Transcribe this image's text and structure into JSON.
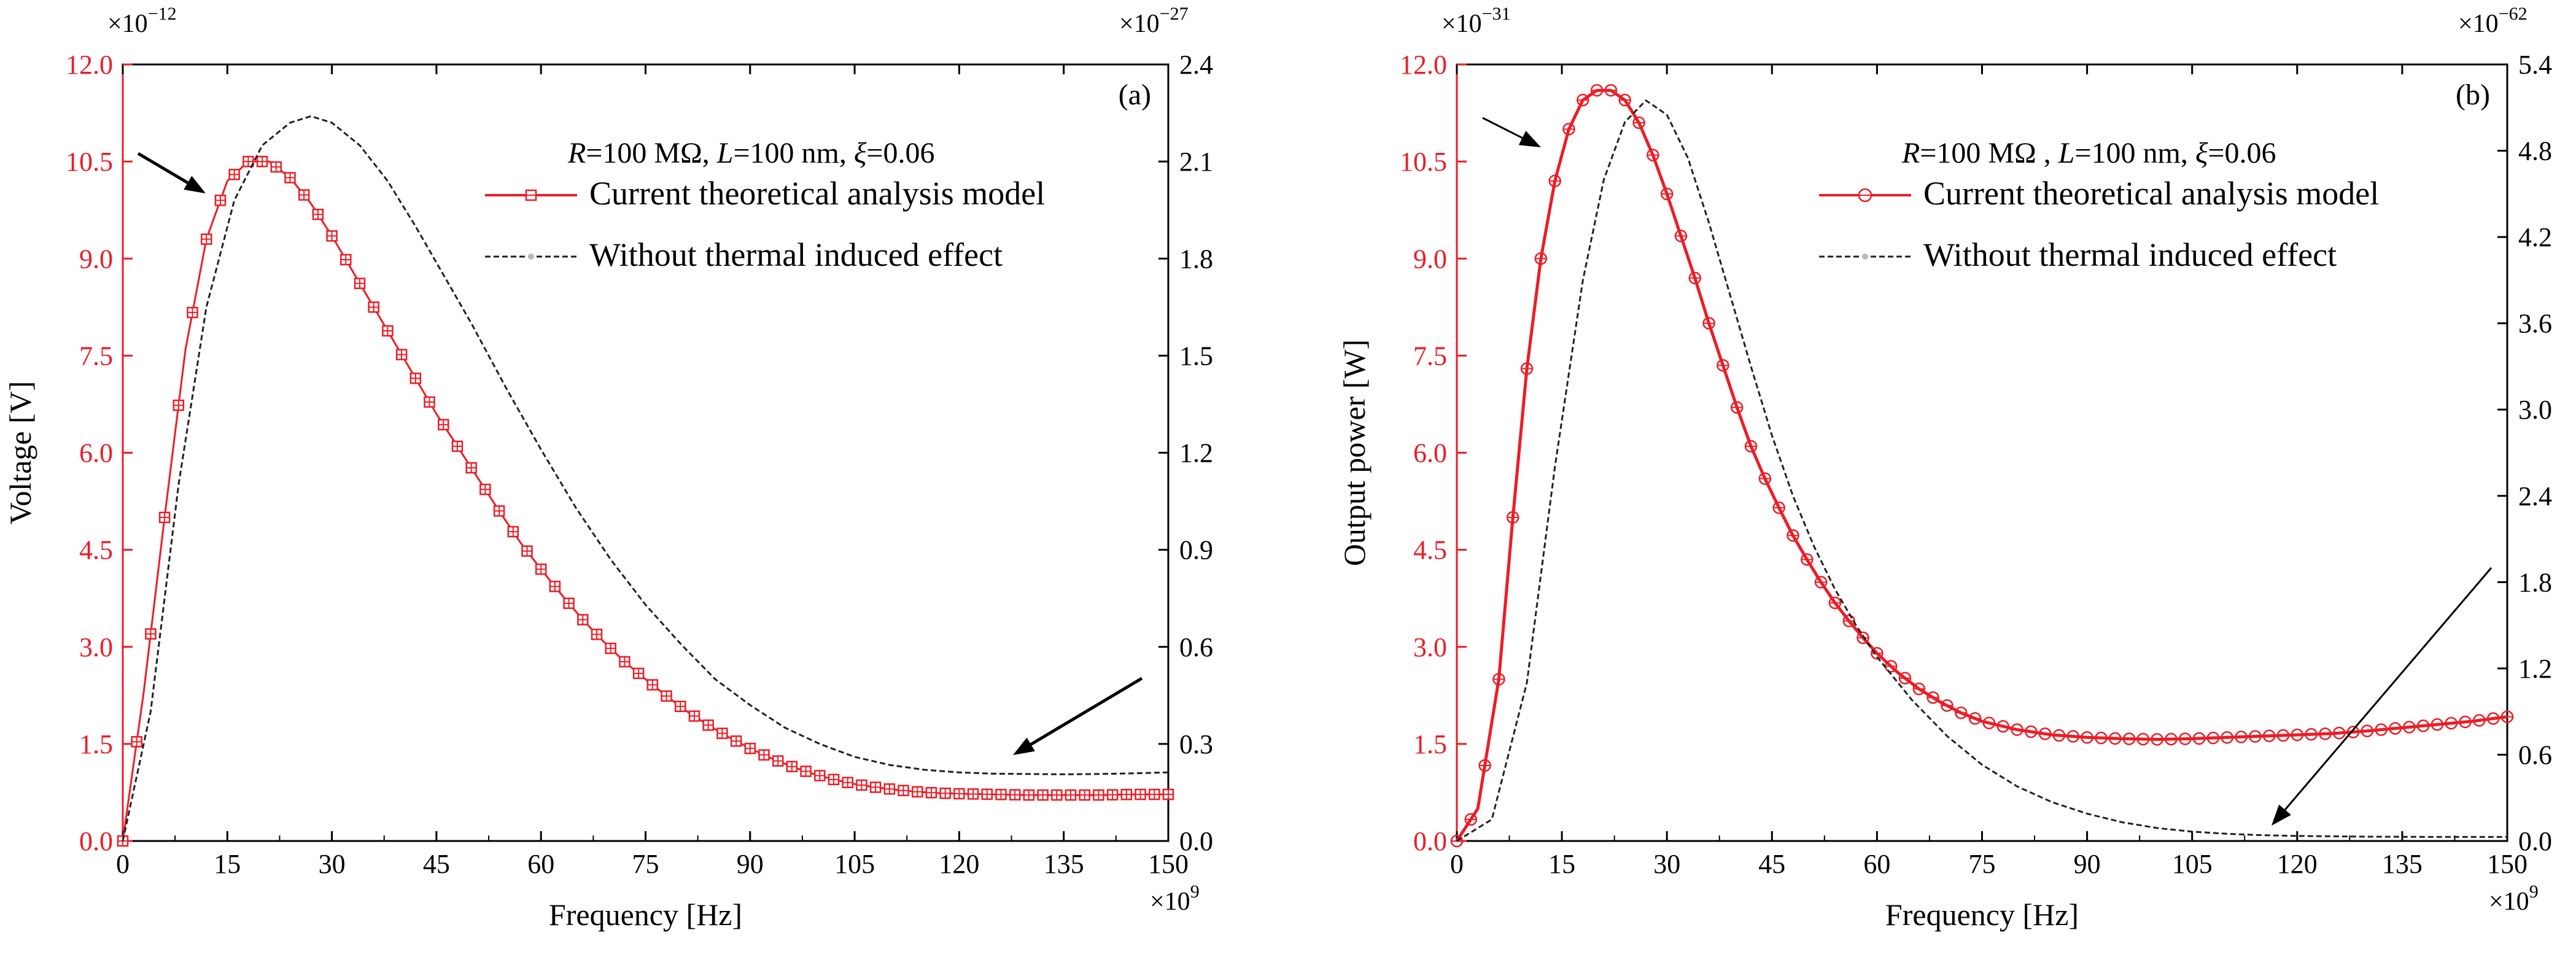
{
  "colors": {
    "primary": "#ee1c25",
    "secondary": "#222222",
    "axis": "#000000",
    "marker_fill": "none"
  },
  "chart_data": [
    {
      "type": "line",
      "panel_label": "(a)",
      "xlabel": "Frequency [Hz]",
      "x_multiplier": "×10",
      "x_multiplier_exp": "9",
      "xlim": [
        0,
        150
      ],
      "xticks": [
        "0",
        "15",
        "30",
        "45",
        "60",
        "75",
        "90",
        "105",
        "120",
        "135",
        "150"
      ],
      "ylabel": "Voltage [V]",
      "y_multiplier": "×10",
      "y_multiplier_exp": "−12",
      "ylim": [
        0,
        12
      ],
      "yticks": [
        "0.0",
        "1.5",
        "3.0",
        "4.5",
        "6.0",
        "7.5",
        "9.0",
        "10.5",
        "12.0"
      ],
      "y2_multiplier": "×10",
      "y2_multiplier_exp": "−27",
      "y2lim": [
        0,
        2.4
      ],
      "y2ticks": [
        "0.0",
        "0.3",
        "0.6",
        "0.9",
        "1.2",
        "1.5",
        "1.8",
        "2.1",
        "2.4"
      ],
      "params": {
        "r_sym": "R",
        "r_text": "=100 MΩ,",
        "l_sym": "L",
        "l_text": "=100 nm,",
        "xi_sym": "ξ",
        "xi_text": "=0.06"
      },
      "series": [
        {
          "name": "Current theoretical analysis model",
          "axis": "left",
          "marker": "square",
          "points": [
            [
              0,
              0
            ],
            [
              3,
              2.3
            ],
            [
              6,
              5.0
            ],
            [
              9,
              7.6
            ],
            [
              12,
              9.3
            ],
            [
              15,
              10.2
            ],
            [
              18,
              10.5
            ],
            [
              21,
              10.5
            ],
            [
              24,
              10.25
            ],
            [
              27,
              9.85
            ],
            [
              30,
              9.35
            ],
            [
              33,
              8.8
            ],
            [
              36,
              8.25
            ],
            [
              39,
              7.7
            ],
            [
              42,
              7.15
            ],
            [
              45,
              6.6
            ],
            [
              48,
              6.1
            ],
            [
              51,
              5.6
            ],
            [
              54,
              5.1
            ],
            [
              57,
              4.62
            ],
            [
              60,
              4.2
            ],
            [
              63,
              3.8
            ],
            [
              66,
              3.42
            ],
            [
              69,
              3.08
            ],
            [
              72,
              2.77
            ],
            [
              75,
              2.5
            ],
            [
              78,
              2.24
            ],
            [
              81,
              2.0
            ],
            [
              84,
              1.79
            ],
            [
              87,
              1.6
            ],
            [
              90,
              1.43
            ],
            [
              93,
              1.28
            ],
            [
              96,
              1.15
            ],
            [
              99,
              1.04
            ],
            [
              102,
              0.95
            ],
            [
              105,
              0.88
            ],
            [
              108,
              0.83
            ],
            [
              111,
              0.79
            ],
            [
              114,
              0.76
            ],
            [
              117,
              0.74
            ],
            [
              120,
              0.73
            ],
            [
              125,
              0.72
            ],
            [
              130,
              0.71
            ],
            [
              135,
              0.71
            ],
            [
              140,
              0.71
            ],
            [
              145,
              0.72
            ],
            [
              150,
              0.72
            ]
          ]
        },
        {
          "name": "Without thermal induced effect",
          "axis": "right",
          "marker": "none",
          "points": [
            [
              0,
              0
            ],
            [
              4,
              0.4
            ],
            [
              8,
              1.1
            ],
            [
              12,
              1.65
            ],
            [
              16,
              1.98
            ],
            [
              20,
              2.15
            ],
            [
              24,
              2.22
            ],
            [
              27,
              2.24
            ],
            [
              30,
              2.22
            ],
            [
              34,
              2.15
            ],
            [
              38,
              2.04
            ],
            [
              42,
              1.9
            ],
            [
              46,
              1.75
            ],
            [
              50,
              1.6
            ],
            [
              55,
              1.4
            ],
            [
              60,
              1.21
            ],
            [
              65,
              1.03
            ],
            [
              70,
              0.87
            ],
            [
              75,
              0.73
            ],
            [
              80,
              0.61
            ],
            [
              85,
              0.5
            ],
            [
              90,
              0.42
            ],
            [
              95,
              0.35
            ],
            [
              100,
              0.3
            ],
            [
              105,
              0.26
            ],
            [
              110,
              0.235
            ],
            [
              115,
              0.22
            ],
            [
              120,
              0.212
            ],
            [
              125,
              0.208
            ],
            [
              130,
              0.207
            ],
            [
              135,
              0.206
            ],
            [
              140,
              0.207
            ],
            [
              145,
              0.209
            ],
            [
              150,
              0.212
            ]
          ]
        }
      ],
      "legend_position": "top-right"
    },
    {
      "type": "line",
      "panel_label": "(b)",
      "xlabel": "Frequency [Hz]",
      "x_multiplier": "×10",
      "x_multiplier_exp": "9",
      "xlim": [
        0,
        150
      ],
      "xticks": [
        "0",
        "15",
        "30",
        "45",
        "60",
        "75",
        "90",
        "105",
        "120",
        "135",
        "150"
      ],
      "ylabel": "Output power [W]",
      "y_multiplier": "×10",
      "y_multiplier_exp": "−31",
      "ylim": [
        0,
        12
      ],
      "yticks": [
        "0.0",
        "1.5",
        "3.0",
        "4.5",
        "6.0",
        "7.5",
        "9.0",
        "10.5",
        "12.0"
      ],
      "y2_multiplier": "×10",
      "y2_multiplier_exp": "−62",
      "y2lim": [
        0,
        5.4
      ],
      "y2ticks": [
        "0.0",
        "0.6",
        "1.2",
        "1.8",
        "2.4",
        "3.0",
        "3.6",
        "4.2",
        "4.8",
        "5.4"
      ],
      "params": {
        "r_sym": "R",
        "r_text": "=100 MΩ ,",
        "l_sym": "L",
        "l_text": "=100 nm,",
        "xi_sym": "ξ",
        "xi_text": "=0.06"
      },
      "series": [
        {
          "name": "Current theoretical analysis model",
          "axis": "left",
          "marker": "circle",
          "points": [
            [
              0,
              0
            ],
            [
              3,
              0.5
            ],
            [
              6,
              2.5
            ],
            [
              8,
              5.0
            ],
            [
              10,
              7.3
            ],
            [
              12,
              9.0
            ],
            [
              14,
              10.2
            ],
            [
              16,
              11.0
            ],
            [
              18,
              11.45
            ],
            [
              20,
              11.6
            ],
            [
              22,
              11.6
            ],
            [
              24,
              11.45
            ],
            [
              26,
              11.1
            ],
            [
              28,
              10.6
            ],
            [
              30,
              10.0
            ],
            [
              32,
              9.35
            ],
            [
              34,
              8.7
            ],
            [
              36,
              8.0
            ],
            [
              38,
              7.35
            ],
            [
              40,
              6.7
            ],
            [
              42,
              6.1
            ],
            [
              44,
              5.6
            ],
            [
              46,
              5.15
            ],
            [
              48,
              4.72
            ],
            [
              50,
              4.35
            ],
            [
              52,
              4.0
            ],
            [
              54,
              3.68
            ],
            [
              56,
              3.4
            ],
            [
              58,
              3.14
            ],
            [
              60,
              2.9
            ],
            [
              63,
              2.6
            ],
            [
              66,
              2.35
            ],
            [
              69,
              2.15
            ],
            [
              72,
              1.98
            ],
            [
              75,
              1.85
            ],
            [
              80,
              1.72
            ],
            [
              85,
              1.64
            ],
            [
              90,
              1.6
            ],
            [
              95,
              1.58
            ],
            [
              100,
              1.57
            ],
            [
              105,
              1.58
            ],
            [
              110,
              1.6
            ],
            [
              115,
              1.62
            ],
            [
              120,
              1.64
            ],
            [
              125,
              1.66
            ],
            [
              130,
              1.7
            ],
            [
              135,
              1.75
            ],
            [
              140,
              1.8
            ],
            [
              145,
              1.85
            ],
            [
              150,
              1.92
            ]
          ]
        },
        {
          "name": "Without thermal induced effect",
          "axis": "right",
          "marker": "none",
          "points": [
            [
              0,
              0
            ],
            [
              5,
              0.15
            ],
            [
              10,
              1.1
            ],
            [
              14,
              2.6
            ],
            [
              18,
              3.9
            ],
            [
              21,
              4.6
            ],
            [
              24,
              5.0
            ],
            [
              27,
              5.15
            ],
            [
              30,
              5.05
            ],
            [
              33,
              4.75
            ],
            [
              36,
              4.3
            ],
            [
              39,
              3.8
            ],
            [
              42,
              3.3
            ],
            [
              45,
              2.82
            ],
            [
              48,
              2.4
            ],
            [
              51,
              2.05
            ],
            [
              54,
              1.75
            ],
            [
              57,
              1.5
            ],
            [
              60,
              1.28
            ],
            [
              65,
              0.98
            ],
            [
              70,
              0.73
            ],
            [
              75,
              0.53
            ],
            [
              80,
              0.38
            ],
            [
              85,
              0.27
            ],
            [
              90,
              0.19
            ],
            [
              95,
              0.13
            ],
            [
              100,
              0.09
            ],
            [
              105,
              0.065
            ],
            [
              110,
              0.05
            ],
            [
              115,
              0.04
            ],
            [
              120,
              0.035
            ],
            [
              130,
              0.03
            ],
            [
              140,
              0.028
            ],
            [
              150,
              0.028
            ]
          ]
        }
      ],
      "legend_position": "top-right"
    }
  ]
}
